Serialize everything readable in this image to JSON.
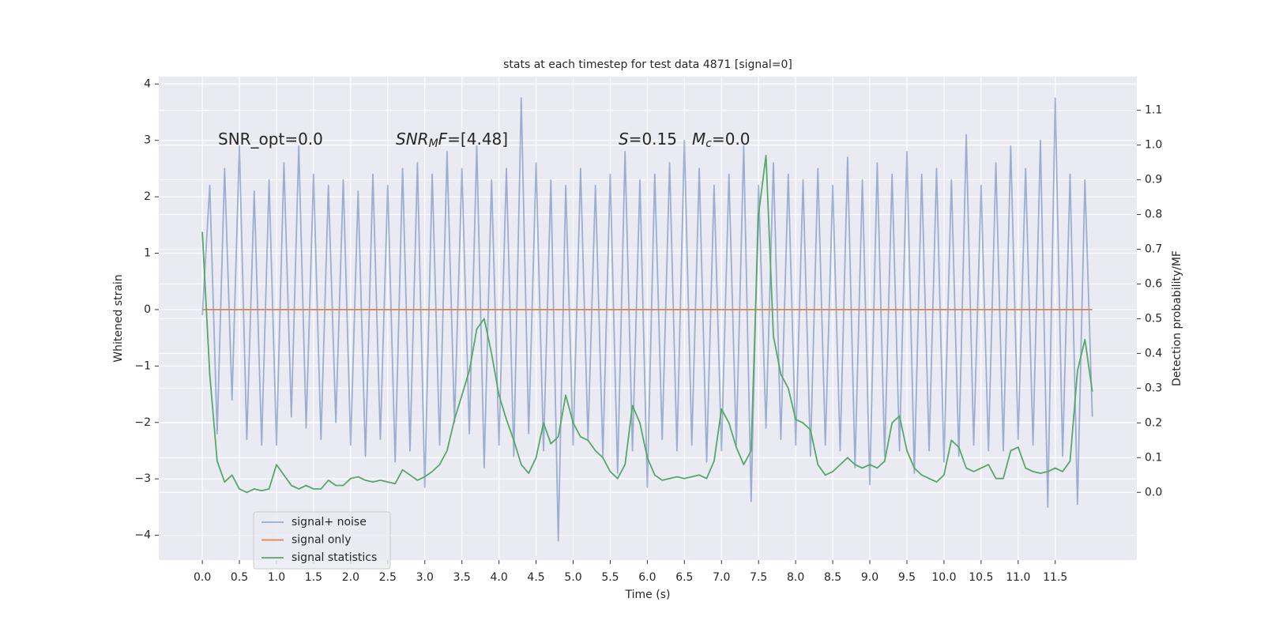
{
  "chart_data": {
    "type": "line",
    "title": "stats at each timestep for test data 4871 [signal=0]",
    "x_label": "Time (s)",
    "y_label": "Whitened strain",
    "y2_label": "Detection probability/MF",
    "xlim": [
      -0.587,
      12.6
    ],
    "ylim": [
      -4.44,
      4.13
    ],
    "y2lim": [
      -0.195,
      1.197
    ],
    "xticks": [
      {
        "value": 0,
        "label": "0.0"
      },
      0.5,
      {
        "value": 1,
        "label": "1.0"
      },
      1.5,
      {
        "value": 2,
        "label": "2.0"
      },
      2.5,
      {
        "value": 3,
        "label": "3.0"
      },
      3.5,
      {
        "value": 4,
        "label": "4.0"
      },
      4.5,
      {
        "value": 5,
        "label": "5.0"
      },
      5.5,
      {
        "value": 6,
        "label": "6.0"
      },
      6.5,
      {
        "value": 7,
        "label": "7.0"
      },
      7.5,
      {
        "value": 8,
        "label": "8.0"
      },
      8.5,
      {
        "value": 9,
        "label": "9.0"
      },
      9.5,
      {
        "value": 10,
        "label": "10.0"
      },
      10.5,
      {
        "value": 11,
        "label": "11.0"
      },
      11.5
    ],
    "yticks": [
      {
        "value": -4,
        "label": "−4"
      },
      {
        "value": -3,
        "label": "−3"
      },
      {
        "value": -2,
        "label": "−2"
      },
      {
        "value": -1,
        "label": "−1"
      },
      0,
      1,
      2,
      3,
      4
    ],
    "y2ticks": [
      {
        "value": 0,
        "label": "0.0"
      },
      0.1,
      0.2,
      0.3,
      0.4,
      0.5,
      0.6,
      0.7,
      0.8,
      0.9,
      {
        "value": 1,
        "label": "1.0"
      },
      1.1
    ],
    "grid": true,
    "legend": "lower left",
    "annotations": [
      [
        {
          "text": "SNR_opt=0.0"
        }
      ],
      [
        {
          "text": "SNR",
          "style": "italic"
        },
        {
          "text": "M",
          "style": "italic-sub"
        },
        {
          "text": "F",
          "style": "italic"
        },
        {
          "text": "=[4.48]"
        }
      ],
      [
        {
          "text": "S",
          "style": "italic"
        },
        {
          "text": "=0.15"
        }
      ],
      [
        {
          "text": "M",
          "style": "italic"
        },
        {
          "text": "c",
          "style": "italic-sub"
        },
        {
          "text": "=0.0"
        }
      ]
    ],
    "x": [
      0,
      0.1,
      0.2,
      0.3,
      0.4,
      0.5,
      0.6,
      0.7,
      0.8,
      0.9,
      1,
      1.1,
      1.2,
      1.3,
      1.4,
      1.5,
      1.6,
      1.7,
      1.8,
      1.9,
      2,
      2.1,
      2.2,
      2.3,
      2.4,
      2.5,
      2.6,
      2.7,
      2.8,
      2.9,
      3,
      3.1,
      3.2,
      3.3,
      3.4,
      3.5,
      3.6,
      3.7,
      3.8,
      3.9,
      4,
      4.1,
      4.2,
      4.3,
      4.4,
      4.5,
      4.6,
      4.7,
      4.8,
      4.9,
      5,
      5.1,
      5.2,
      5.3,
      5.4,
      5.5,
      5.6,
      5.7,
      5.8,
      5.9,
      6,
      6.1,
      6.2,
      6.3,
      6.4,
      6.5,
      6.6,
      6.7,
      6.8,
      6.9,
      7,
      7.1,
      7.2,
      7.3,
      7.4,
      7.5,
      7.6,
      7.7,
      7.8,
      7.9,
      8,
      8.1,
      8.2,
      8.3,
      8.4,
      8.5,
      8.6,
      8.7,
      8.8,
      8.9,
      9,
      9.1,
      9.2,
      9.3,
      9.4,
      9.5,
      9.6,
      9.7,
      9.8,
      9.9,
      10,
      10.1,
      10.2,
      10.3,
      10.4,
      10.5,
      10.6,
      10.7,
      10.8,
      10.9,
      11,
      11.1,
      11.2,
      11.3,
      11.4,
      11.5,
      11.6,
      11.7,
      11.8,
      11.9,
      12
    ],
    "series": [
      {
        "name": "signal+ noise",
        "color": "#4c72b0",
        "opacity": 0.5,
        "values": [
          -0.1,
          2.2,
          -2.2,
          2.5,
          -1.6,
          2.9,
          -2.3,
          2.1,
          -2.4,
          2.3,
          -2.4,
          2.6,
          -1.9,
          2.9,
          -2.1,
          2.4,
          -2.3,
          2.2,
          -2.0,
          2.3,
          -2.4,
          2.1,
          -2.6,
          2.4,
          -2.3,
          2.2,
          -2.7,
          2.5,
          -2.5,
          2.6,
          -3.15,
          2.4,
          -2.4,
          2.8,
          -2.0,
          2.5,
          -2.2,
          2.9,
          -2.8,
          2.3,
          -2.4,
          2.5,
          -2.6,
          3.75,
          -2.2,
          2.6,
          -2.5,
          2.3,
          -4.1,
          2.2,
          -2.4,
          2.5,
          -2.3,
          2.2,
          -2.6,
          2.4,
          -2.9,
          2.8,
          -2.5,
          2.3,
          -3.15,
          2.4,
          -2.3,
          2.6,
          -2.5,
          3.0,
          -2.4,
          2.5,
          -2.7,
          2.2,
          -2.5,
          2.4,
          -2.4,
          2.9,
          -3.4,
          2.2,
          -2.1,
          2.6,
          -2.3,
          2.4,
          -2.4,
          2.3,
          -2.6,
          2.5,
          -2.4,
          2.2,
          -2.5,
          2.7,
          -2.8,
          2.3,
          -3.1,
          2.6,
          -2.6,
          2.4,
          -2.5,
          2.8,
          -2.9,
          2.4,
          -2.5,
          2.5,
          -2.7,
          2.3,
          -2.6,
          3.1,
          -2.4,
          2.2,
          -2.5,
          2.6,
          -2.5,
          2.9,
          -2.3,
          2.5,
          -2.4,
          3.0,
          -3.5,
          3.75,
          -2.6,
          2.4,
          -3.45,
          2.3,
          -1.9
        ]
      },
      {
        "name": "signal only",
        "color": "#dd8452",
        "opacity": 1,
        "values": [
          0,
          0,
          0,
          0,
          0,
          0,
          0,
          0,
          0,
          0,
          0,
          0,
          0,
          0,
          0,
          0,
          0,
          0,
          0,
          0,
          0,
          0,
          0,
          0,
          0,
          0,
          0,
          0,
          0,
          0,
          0,
          0,
          0,
          0,
          0,
          0,
          0,
          0,
          0,
          0,
          0,
          0,
          0,
          0,
          0,
          0,
          0,
          0,
          0,
          0,
          0,
          0,
          0,
          0,
          0,
          0,
          0,
          0,
          0,
          0,
          0,
          0,
          0,
          0,
          0,
          0,
          0,
          0,
          0,
          0,
          0,
          0,
          0,
          0,
          0,
          0,
          0,
          0,
          0,
          0,
          0,
          0,
          0,
          0,
          0,
          0,
          0,
          0,
          0,
          0,
          0,
          0,
          0,
          0,
          0,
          0,
          0,
          0,
          0,
          0,
          0,
          0,
          0,
          0,
          0,
          0,
          0,
          0,
          0,
          0,
          0,
          0,
          0,
          0,
          0,
          0,
          0,
          0,
          0,
          0,
          0
        ]
      },
      {
        "name": "signal statistics",
        "color": "#55a868",
        "opacity": 1,
        "axis": "y2",
        "values": [
          0.75,
          0.34,
          0.09,
          0.03,
          0.05,
          0.01,
          0.0,
          0.01,
          0.005,
          0.01,
          0.08,
          0.05,
          0.02,
          0.01,
          0.02,
          0.01,
          0.01,
          0.035,
          0.02,
          0.02,
          0.04,
          0.045,
          0.035,
          0.03,
          0.035,
          0.03,
          0.025,
          0.065,
          0.05,
          0.035,
          0.045,
          0.06,
          0.08,
          0.12,
          0.21,
          0.28,
          0.35,
          0.47,
          0.5,
          0.4,
          0.28,
          0.21,
          0.15,
          0.08,
          0.055,
          0.1,
          0.2,
          0.14,
          0.16,
          0.28,
          0.2,
          0.16,
          0.15,
          0.12,
          0.1,
          0.06,
          0.04,
          0.08,
          0.25,
          0.2,
          0.1,
          0.05,
          0.035,
          0.04,
          0.045,
          0.04,
          0.045,
          0.05,
          0.04,
          0.09,
          0.24,
          0.2,
          0.13,
          0.08,
          0.12,
          0.8,
          0.97,
          0.45,
          0.34,
          0.3,
          0.21,
          0.2,
          0.18,
          0.08,
          0.05,
          0.06,
          0.08,
          0.1,
          0.08,
          0.07,
          0.08,
          0.07,
          0.09,
          0.2,
          0.22,
          0.12,
          0.07,
          0.05,
          0.04,
          0.03,
          0.05,
          0.15,
          0.13,
          0.07,
          0.06,
          0.07,
          0.08,
          0.04,
          0.04,
          0.12,
          0.13,
          0.07,
          0.06,
          0.055,
          0.06,
          0.07,
          0.06,
          0.09,
          0.35,
          0.44,
          0.29
        ]
      }
    ]
  }
}
